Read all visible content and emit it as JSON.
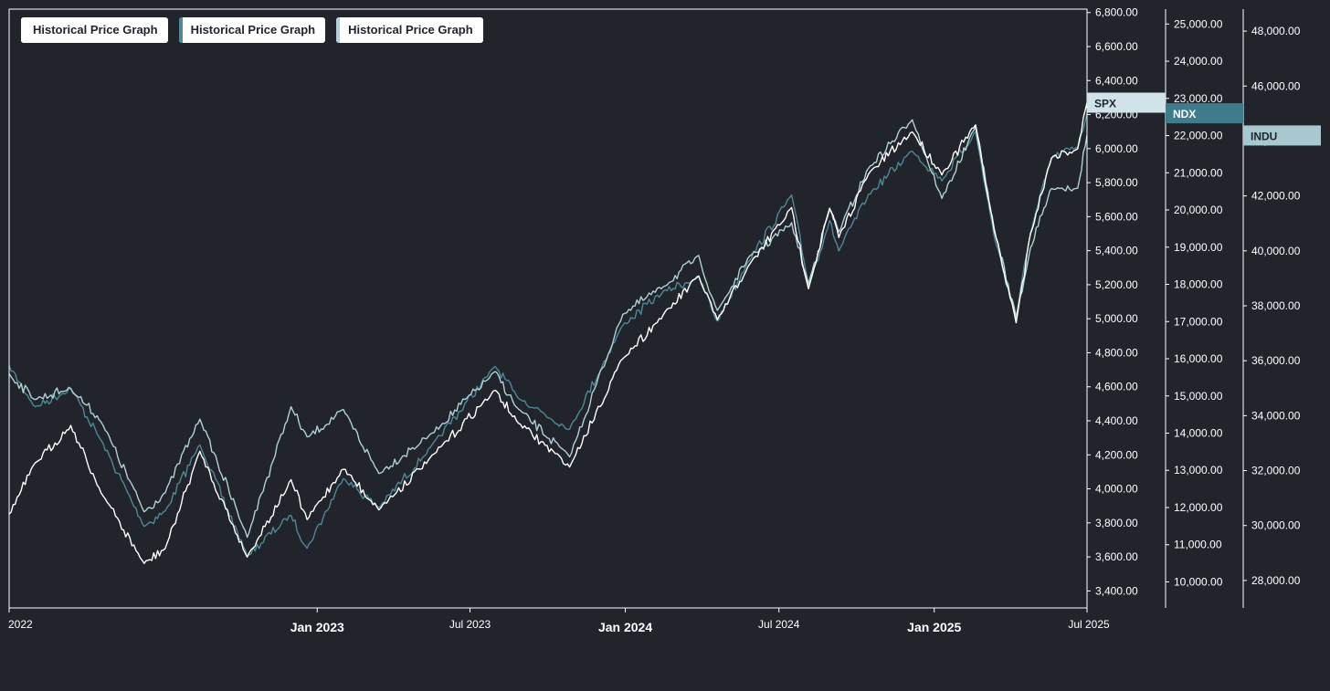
{
  "legend": {
    "buttons": [
      {
        "label": "Historical Price Graph",
        "color": "#ffffff"
      },
      {
        "label": "Historical Price Graph",
        "color": "#4e8797"
      },
      {
        "label": "Historical Price Graph",
        "color": "#b0d0d8"
      }
    ]
  },
  "colors": {
    "background": "#21252b",
    "axis": "#ffffff",
    "spx": "#ffffff",
    "ndx": "#4e8797",
    "indu": "#b0d0d8",
    "spx_tag": "#cfe3e8",
    "ndx_tag": "#3f7d8d",
    "indu_tag": "#a8c8d0"
  },
  "chart_data": {
    "type": "line",
    "x_axis": {
      "range": [
        "2022-01-01",
        "2025-07-01"
      ],
      "ticks": [
        {
          "date": "2022-01-01",
          "label": "2022",
          "major": false
        },
        {
          "date": "2023-01-01",
          "label": "Jan 2023",
          "major": true
        },
        {
          "date": "2023-07-01",
          "label": "Jul 2023",
          "major": false
        },
        {
          "date": "2024-01-01",
          "label": "Jan 2024",
          "major": true
        },
        {
          "date": "2024-07-01",
          "label": "Jul 2024",
          "major": false
        },
        {
          "date": "2025-01-01",
          "label": "Jan 2025",
          "major": true
        },
        {
          "date": "2025-07-01",
          "label": "Jul 2025",
          "major": false
        }
      ]
    },
    "y_axes": [
      {
        "id": "spx",
        "ylim": [
          3300,
          6820
        ],
        "ticks": [
          3400,
          3600,
          3800,
          4000,
          4200,
          4400,
          4600,
          4800,
          5000,
          5200,
          5400,
          5600,
          5800,
          6000,
          6200,
          6400,
          6600,
          6800
        ],
        "tick_labels": [
          "3,400.00",
          "3,600.00",
          "3,800.00",
          "4,000.00",
          "4,200.00",
          "4,400.00",
          "4,600.00",
          "4,800.00",
          "5,000.00",
          "5,200.00",
          "5,400.00",
          "5,600.00",
          "5,800.00",
          "6,000.00",
          "6,200.00",
          "6,400.00",
          "6,600.00",
          "6,800.00"
        ],
        "tag_label": "SPX"
      },
      {
        "id": "ndx",
        "ylim": [
          9300,
          25400
        ],
        "ticks": [
          10000,
          11000,
          12000,
          13000,
          14000,
          15000,
          16000,
          17000,
          18000,
          19000,
          20000,
          21000,
          22000,
          23000,
          24000,
          25000
        ],
        "tick_labels": [
          "10,000.00",
          "11,000.00",
          "12,000.00",
          "13,000.00",
          "14,000.00",
          "15,000.00",
          "16,000.00",
          "17,000.00",
          "18,000.00",
          "19,000.00",
          "20,000.00",
          "21,000.00",
          "22,000.00",
          "23,000.00",
          "24,000.00",
          "25,000.00"
        ],
        "tag_label": "NDX"
      },
      {
        "id": "indu",
        "ylim": [
          27000,
          48800
        ],
        "ticks": [
          28000,
          30000,
          32000,
          34000,
          36000,
          38000,
          40000,
          42000,
          44000,
          46000,
          48000
        ],
        "tick_labels": [
          "28,000.00",
          "30,000.00",
          "32,000.00",
          "34,000.00",
          "36,000.00",
          "38,000.00",
          "40,000.00",
          "42,000.00",
          "44,000.00",
          "46,000.00",
          "48,000.00"
        ],
        "tag_label": "INDU"
      }
    ],
    "series": [
      {
        "name": "SPX",
        "axis": "spx",
        "points": [
          [
            "2022-01-01",
            3850
          ],
          [
            "2022-02-01",
            4150
          ],
          [
            "2022-03-15",
            4370
          ],
          [
            "2022-04-20",
            3980
          ],
          [
            "2022-06-10",
            3560
          ],
          [
            "2022-07-05",
            3650
          ],
          [
            "2022-08-15",
            4220
          ],
          [
            "2022-10-10",
            3600
          ],
          [
            "2022-12-01",
            4050
          ],
          [
            "2022-12-20",
            3820
          ],
          [
            "2023-02-01",
            4120
          ],
          [
            "2023-03-15",
            3880
          ],
          [
            "2023-05-15",
            4180
          ],
          [
            "2023-07-31",
            4580
          ],
          [
            "2023-08-25",
            4400
          ],
          [
            "2023-10-27",
            4130
          ],
          [
            "2023-12-29",
            4770
          ],
          [
            "2024-02-15",
            5020
          ],
          [
            "2024-03-28",
            5250
          ],
          [
            "2024-04-19",
            4990
          ],
          [
            "2024-05-25",
            5300
          ],
          [
            "2024-07-16",
            5650
          ],
          [
            "2024-08-05",
            5180
          ],
          [
            "2024-08-30",
            5650
          ],
          [
            "2024-09-10",
            5480
          ],
          [
            "2024-10-15",
            5850
          ],
          [
            "2024-12-06",
            6100
          ],
          [
            "2025-01-10",
            5850
          ],
          [
            "2025-02-19",
            6140
          ],
          [
            "2025-03-13",
            5520
          ],
          [
            "2025-04-08",
            4980
          ],
          [
            "2025-04-25",
            5500
          ],
          [
            "2025-05-20",
            5950
          ],
          [
            "2025-06-20",
            6000
          ],
          [
            "2025-07-01",
            6270
          ]
        ]
      },
      {
        "name": "NDX",
        "axis": "ndx",
        "points": [
          [
            "2022-01-01",
            15800
          ],
          [
            "2022-02-01",
            14700
          ],
          [
            "2022-03-15",
            15200
          ],
          [
            "2022-04-20",
            13800
          ],
          [
            "2022-06-10",
            11500
          ],
          [
            "2022-07-05",
            11900
          ],
          [
            "2022-08-15",
            13700
          ],
          [
            "2022-10-10",
            10700
          ],
          [
            "2022-12-01",
            11800
          ],
          [
            "2022-12-20",
            10900
          ],
          [
            "2023-02-01",
            12800
          ],
          [
            "2023-03-15",
            12000
          ],
          [
            "2023-05-15",
            13600
          ],
          [
            "2023-07-31",
            15800
          ],
          [
            "2023-08-25",
            15000
          ],
          [
            "2023-10-27",
            14100
          ],
          [
            "2023-12-29",
            16900
          ],
          [
            "2024-02-15",
            17800
          ],
          [
            "2024-03-28",
            18200
          ],
          [
            "2024-04-19",
            17000
          ],
          [
            "2024-05-25",
            18600
          ],
          [
            "2024-07-16",
            20400
          ],
          [
            "2024-08-05",
            18000
          ],
          [
            "2024-08-30",
            19700
          ],
          [
            "2024-09-10",
            18900
          ],
          [
            "2024-10-15",
            20400
          ],
          [
            "2024-12-06",
            21600
          ],
          [
            "2025-01-10",
            20800
          ],
          [
            "2025-02-19",
            22100
          ],
          [
            "2025-03-13",
            19300
          ],
          [
            "2025-04-08",
            17100
          ],
          [
            "2025-04-25",
            19400
          ],
          [
            "2025-05-20",
            21400
          ],
          [
            "2025-06-20",
            21700
          ],
          [
            "2025-07-01",
            22600
          ]
        ]
      },
      {
        "name": "INDU",
        "axis": "indu",
        "points": [
          [
            "2022-01-01",
            35500
          ],
          [
            "2022-02-01",
            34600
          ],
          [
            "2022-03-15",
            35000
          ],
          [
            "2022-04-20",
            33800
          ],
          [
            "2022-06-10",
            30500
          ],
          [
            "2022-07-05",
            31200
          ],
          [
            "2022-08-15",
            33900
          ],
          [
            "2022-10-10",
            29600
          ],
          [
            "2022-12-01",
            34300
          ],
          [
            "2022-12-20",
            33200
          ],
          [
            "2023-02-01",
            34200
          ],
          [
            "2023-03-15",
            31900
          ],
          [
            "2023-05-15",
            33300
          ],
          [
            "2023-07-31",
            35600
          ],
          [
            "2023-08-25",
            34300
          ],
          [
            "2023-10-27",
            32500
          ],
          [
            "2023-12-29",
            37700
          ],
          [
            "2024-02-15",
            38700
          ],
          [
            "2024-03-28",
            39800
          ],
          [
            "2024-04-19",
            37800
          ],
          [
            "2024-05-25",
            39700
          ],
          [
            "2024-07-16",
            41000
          ],
          [
            "2024-08-05",
            38800
          ],
          [
            "2024-08-30",
            41500
          ],
          [
            "2024-09-10",
            40700
          ],
          [
            "2024-10-15",
            43000
          ],
          [
            "2024-12-06",
            44800
          ],
          [
            "2025-01-10",
            41900
          ],
          [
            "2025-02-19",
            44500
          ],
          [
            "2025-03-13",
            40800
          ],
          [
            "2025-04-08",
            37600
          ],
          [
            "2025-04-25",
            40100
          ],
          [
            "2025-05-20",
            42300
          ],
          [
            "2025-06-20",
            42300
          ],
          [
            "2025-07-01",
            44200
          ]
        ]
      }
    ]
  }
}
